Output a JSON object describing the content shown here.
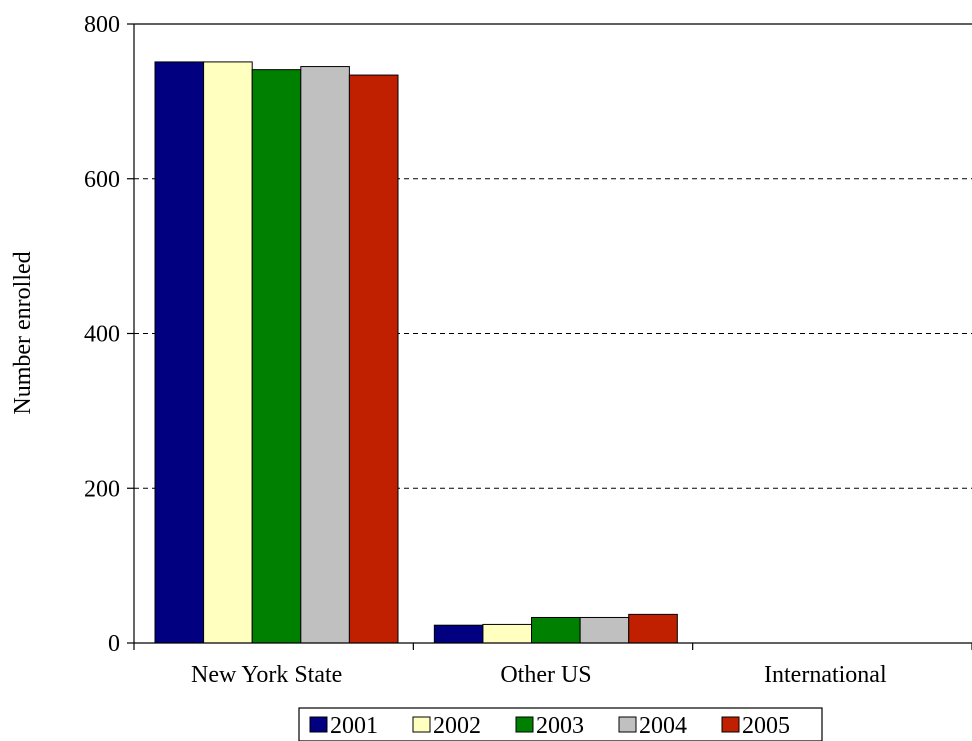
{
  "chart_data": {
    "type": "bar",
    "title": "",
    "xlabel": "",
    "ylabel": "Number enrolled",
    "categories": [
      "New York State",
      "Other US",
      "International"
    ],
    "ylim": [
      0,
      800
    ],
    "yticks": [
      0,
      200,
      400,
      600,
      800
    ],
    "grid": "horizontal-dashed",
    "legend": "bottom-center",
    "series": [
      {
        "name": "2001",
        "color": "#000080",
        "values": [
          751,
          23,
          0
        ]
      },
      {
        "name": "2002",
        "color": "#FFFFC0",
        "values": [
          751,
          24,
          0
        ]
      },
      {
        "name": "2003",
        "color": "#008000",
        "values": [
          741,
          33,
          0
        ]
      },
      {
        "name": "2004",
        "color": "#C0C0C0",
        "values": [
          745,
          33,
          0
        ]
      },
      {
        "name": "2005",
        "color": "#C02000",
        "values": [
          734,
          37,
          0
        ]
      }
    ]
  }
}
